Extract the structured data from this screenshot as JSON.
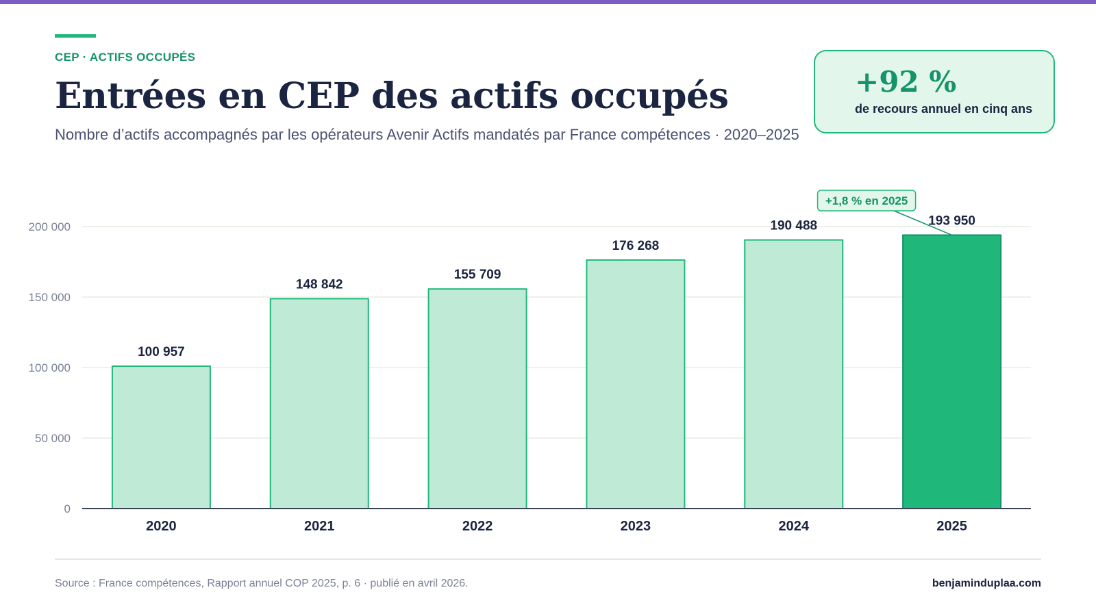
{
  "header": {
    "eyebrow": "CEP · ACTIFS OCCUPÉS",
    "title": "Entrées en CEP des actifs occupés",
    "subtitle": "Nombre d’actifs accompagnés par les opérateurs Avenir Actifs mandatés par France compétences · 2020–2025"
  },
  "kpi": {
    "value": "+92 %",
    "label": "de recours annuel en cinq ans"
  },
  "footer": {
    "source": "Source : France compétences, Rapport annuel COP 2025, p. 6 · publié en avril 2026.",
    "brand": "benjaminduplaa.com"
  },
  "colors": {
    "accent": "#1fb87a",
    "accent_dark": "#15936a",
    "bar_light": "#bfead6",
    "top_bar": "#7c5cc4",
    "text_dark": "#1b2440"
  },
  "chart_data": {
    "type": "bar",
    "categories": [
      "2020",
      "2021",
      "2022",
      "2023",
      "2024",
      "2025"
    ],
    "values": [
      100957,
      148842,
      155709,
      176268,
      190488,
      193950
    ],
    "value_labels": [
      "100 957",
      "148 842",
      "155 709",
      "176 268",
      "190 488",
      "193 950"
    ],
    "highlight_index": 5,
    "ylim": [
      0,
      200000
    ],
    "yticks": [
      0,
      50000,
      100000,
      150000,
      200000
    ],
    "ytick_labels": [
      "0",
      "50 000",
      "100 000",
      "150 000",
      "200 000"
    ],
    "grid": true,
    "annotation": {
      "text": "+1,8 % en 2025",
      "target_index": 5
    },
    "xlabel": "",
    "ylabel": ""
  }
}
